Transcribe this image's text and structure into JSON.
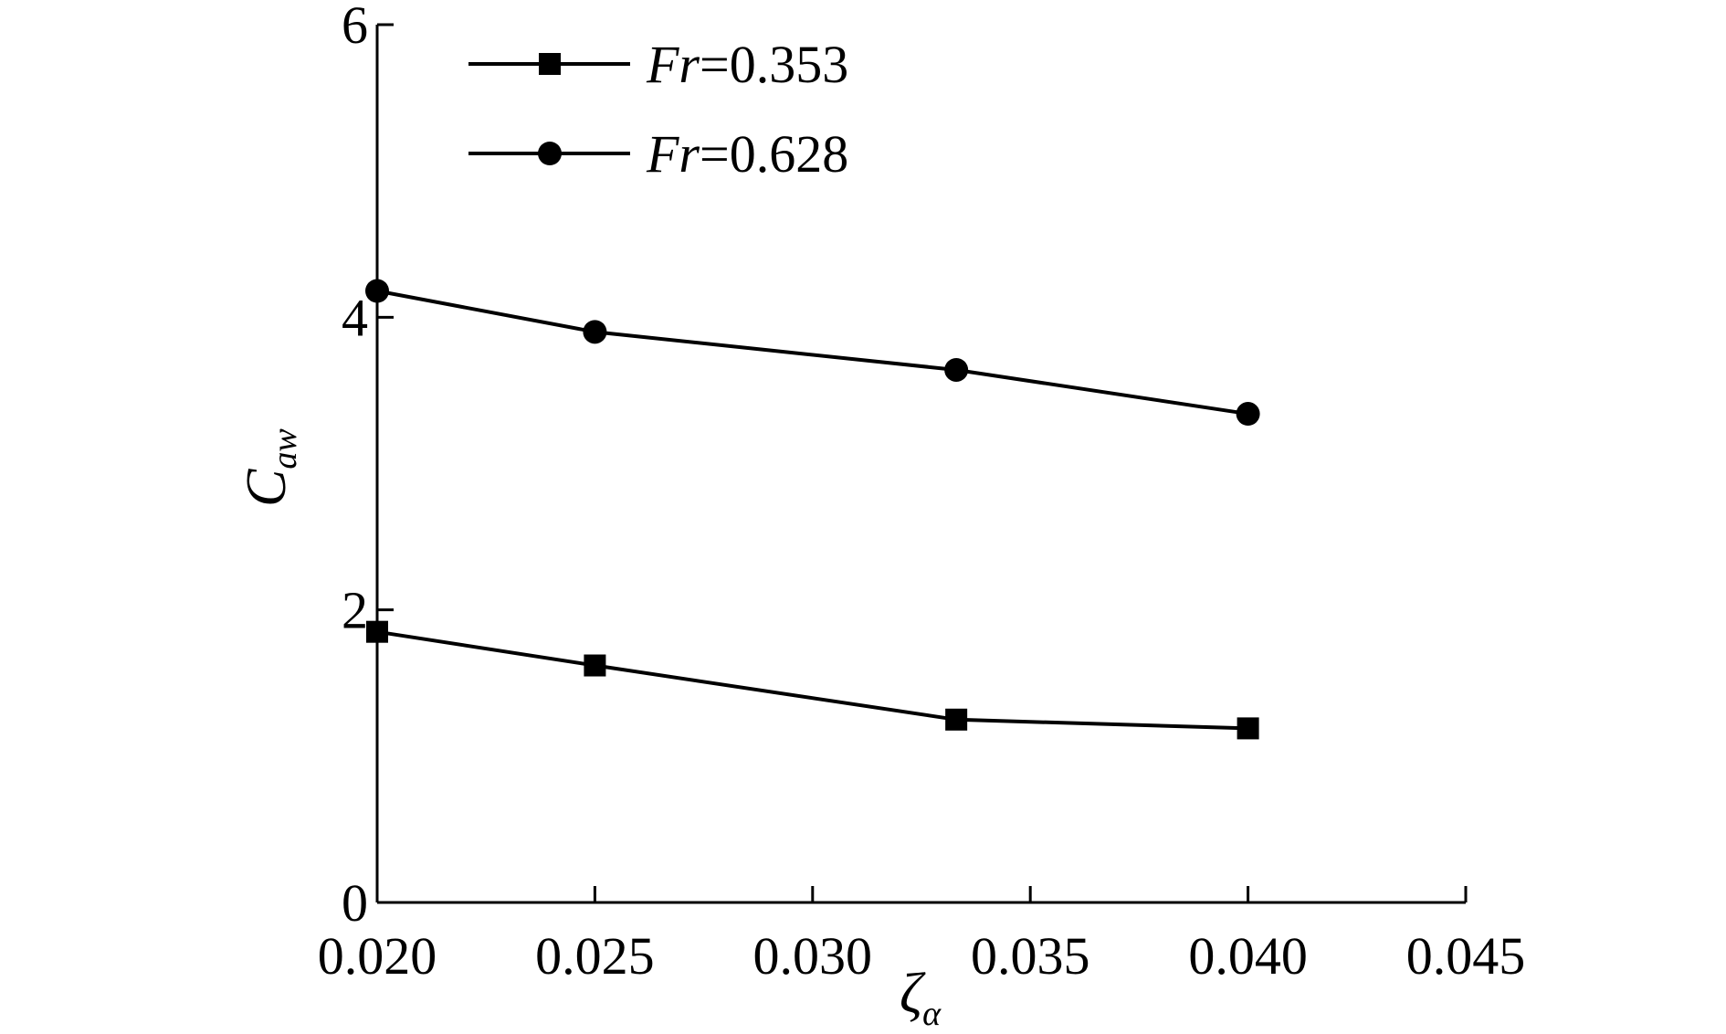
{
  "chart_data": {
    "type": "line",
    "title": "",
    "xlabel": {
      "main": "ζ",
      "sub": "α"
    },
    "ylabel": {
      "main": "C",
      "sub": "aw"
    },
    "xlim": [
      0.02,
      0.045
    ],
    "ylim": [
      0,
      6
    ],
    "xticks": [
      0.02,
      0.025,
      0.03,
      0.035,
      0.04,
      0.045
    ],
    "xtick_labels": [
      "0.020",
      "0.025",
      "0.030",
      "0.035",
      "0.040",
      "0.045"
    ],
    "yticks": [
      0,
      2,
      4,
      6
    ],
    "ytick_labels": [
      "0",
      "2",
      "4",
      "6"
    ],
    "grid": false,
    "legend_position": "top-left",
    "series": [
      {
        "name": "Fr=0.353",
        "name_parts": {
          "var": "Fr",
          "rest": "=0.353"
        },
        "marker": "square",
        "color": "#000000",
        "x": [
          0.02,
          0.025,
          0.0333,
          0.04
        ],
        "y": [
          1.85,
          1.62,
          1.25,
          1.19
        ]
      },
      {
        "name": "Fr=0.628",
        "name_parts": {
          "var": "Fr",
          "rest": "=0.628"
        },
        "marker": "circle",
        "color": "#000000",
        "x": [
          0.02,
          0.025,
          0.0333,
          0.04
        ],
        "y": [
          4.18,
          3.9,
          3.64,
          3.34
        ]
      }
    ]
  }
}
